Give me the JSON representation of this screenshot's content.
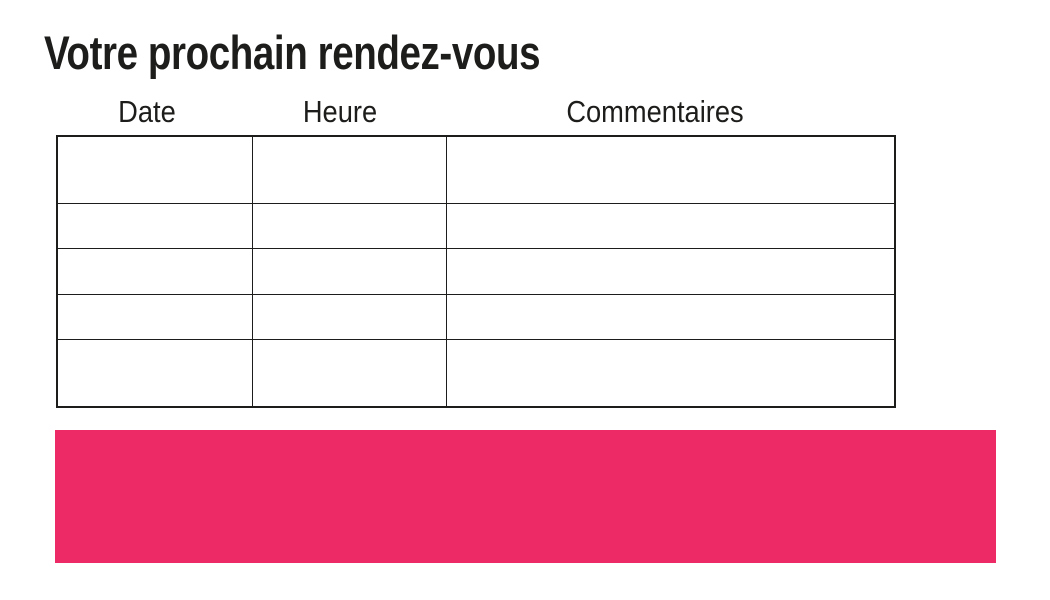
{
  "title": "Votre prochain rendez-vous",
  "table": {
    "headers": [
      "Date",
      "Heure",
      "Commentaires"
    ],
    "rows": [
      [
        "",
        "",
        ""
      ],
      [
        "",
        "",
        ""
      ],
      [
        "",
        "",
        ""
      ],
      [
        "",
        "",
        ""
      ],
      [
        "",
        "",
        ""
      ]
    ]
  },
  "colors": {
    "accent_pink": "#ED2A66",
    "text": "#1D1D1B"
  }
}
